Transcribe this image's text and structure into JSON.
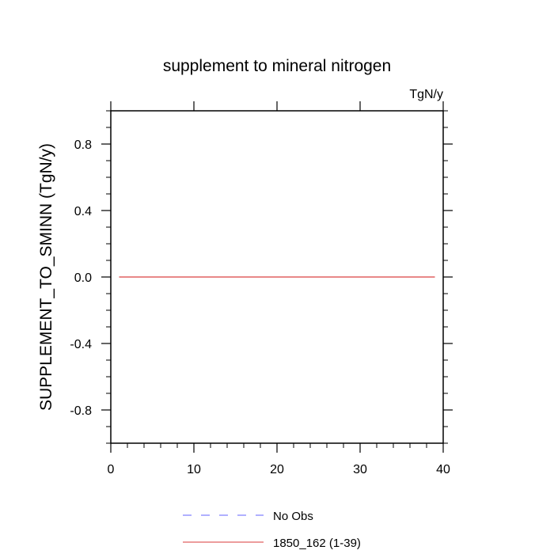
{
  "chart_data": {
    "type": "line",
    "title": "supplement to mineral nitrogen",
    "units_label": "TgN/y",
    "xlabel": "",
    "ylabel": "SUPPLEMENT_TO_SMINN  (TgN/y)",
    "xlim": [
      0,
      40
    ],
    "ylim": [
      -1.0,
      1.0
    ],
    "x_ticks": [
      0,
      10,
      20,
      30,
      40
    ],
    "x_tick_labels": [
      "0",
      "10",
      "20",
      "30",
      "40"
    ],
    "y_ticks": [
      -0.8,
      -0.4,
      0.0,
      0.4,
      0.8
    ],
    "y_tick_labels": [
      "-0.8",
      "-0.4",
      "0.0",
      "0.4",
      "0.8"
    ],
    "grid": false,
    "legend_position": "bottom",
    "series": [
      {
        "name": "No Obs",
        "color": "#8080ff",
        "dash": "dashed",
        "x": [],
        "y": []
      },
      {
        "name": "1850_162 (1-39)",
        "color": "#e06060",
        "dash": "solid",
        "x": [
          1,
          39
        ],
        "y": [
          0.0,
          0.0
        ]
      }
    ]
  }
}
